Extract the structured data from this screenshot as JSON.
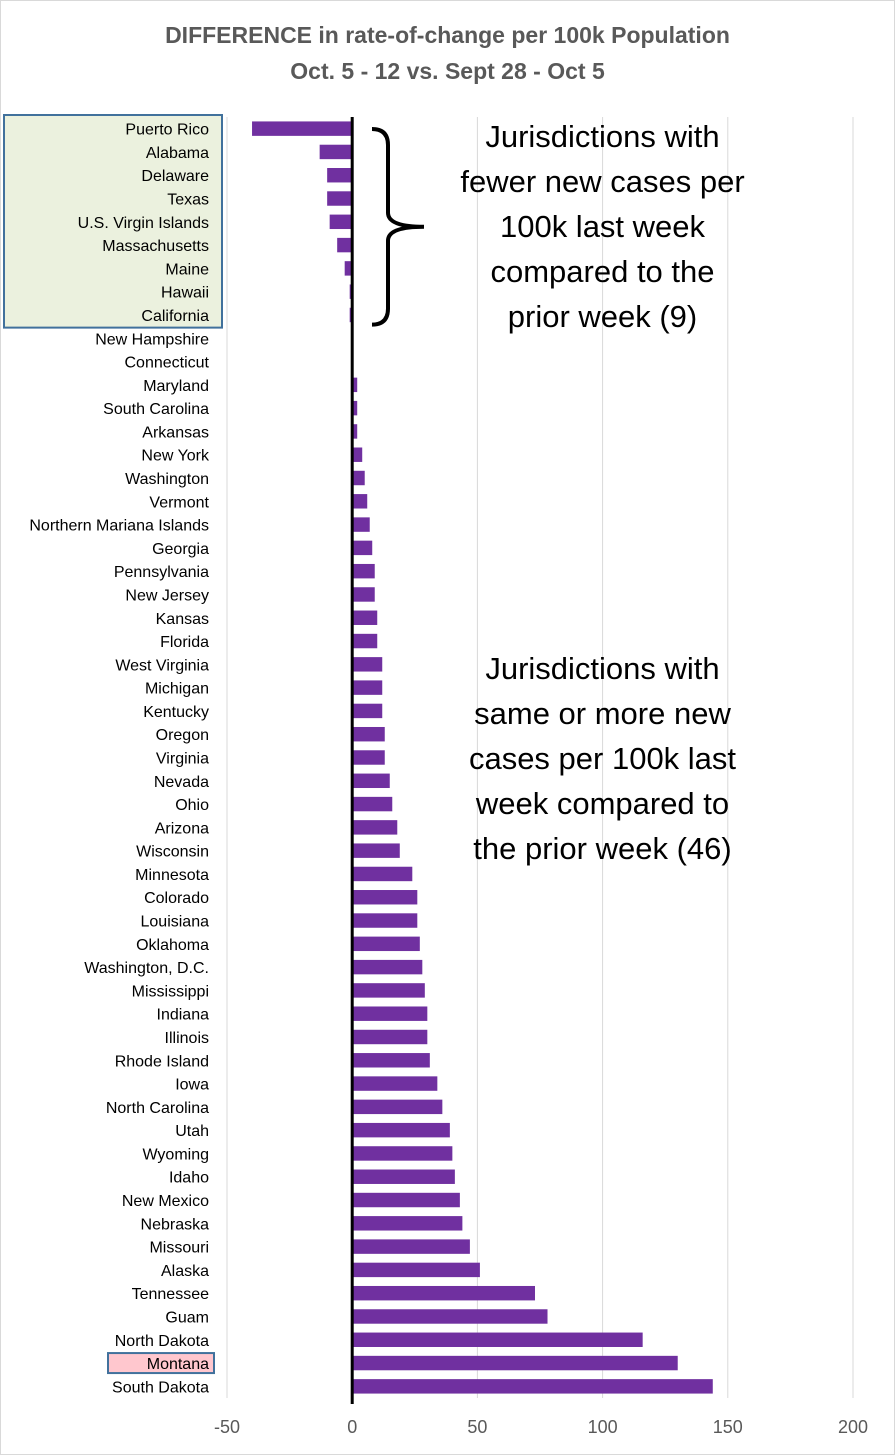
{
  "chart_data": {
    "type": "bar",
    "orientation": "horizontal",
    "title": "DIFFERENCE in rate-of-change per 100k Population",
    "subtitle": "Oct. 5 - 12 vs. Sept 28 - Oct 5",
    "xlim": [
      -50,
      200
    ],
    "xticks": [
      "-50",
      "0",
      "50",
      "100",
      "150",
      "200"
    ],
    "grid": true,
    "bar_color": "#7030a0",
    "categories": [
      "Puerto Rico",
      "Alabama",
      "Delaware",
      "Texas",
      "U.S. Virgin Islands",
      "Massachusetts",
      "Maine",
      "Hawaii",
      "California",
      "New Hampshire",
      "Connecticut",
      "Maryland",
      "South Carolina",
      "Arkansas",
      "New York",
      "Washington",
      "Vermont",
      "Northern Mariana Islands",
      "Georgia",
      "Pennsylvania",
      "New Jersey",
      "Kansas",
      "Florida",
      "West Virginia",
      "Michigan",
      "Kentucky",
      "Oregon",
      "Virginia",
      "Nevada",
      "Ohio",
      "Arizona",
      "Wisconsin",
      "Minnesota",
      "Colorado",
      "Louisiana",
      "Oklahoma",
      "Washington, D.C.",
      "Mississippi",
      "Indiana",
      "Illinois",
      "Rhode Island",
      "Iowa",
      "North Carolina",
      "Utah",
      "Wyoming",
      "Idaho",
      "New Mexico",
      "Nebraska",
      "Missouri",
      "Alaska",
      "Tennessee",
      "Guam",
      "North Dakota",
      "Montana",
      "South Dakota"
    ],
    "values": [
      -40,
      -13,
      -10,
      -10,
      -9,
      -6,
      -3,
      -1,
      -1,
      0,
      0,
      2,
      2,
      2,
      4,
      5,
      6,
      7,
      8,
      9,
      9,
      10,
      10,
      12,
      12,
      12,
      13,
      13,
      15,
      16,
      18,
      19,
      24,
      26,
      26,
      27,
      28,
      29,
      30,
      30,
      31,
      34,
      36,
      39,
      40,
      41,
      43,
      44,
      47,
      51,
      73,
      78,
      116,
      130,
      144
    ],
    "highlight_fewer": {
      "count": 9,
      "color": "#ebf1de",
      "border": "#41719c"
    },
    "highlight_category": {
      "name": "Montana",
      "color": "#ffc7ce",
      "border": "#41719c"
    },
    "annotations": [
      "Jurisdictions with\nfewer new cases per\n100k last week\ncompared to the\nprior week (9)",
      "Jurisdictions with\nsame or more new\ncases per 100k last\nweek compared to\nthe prior week (46)"
    ]
  }
}
